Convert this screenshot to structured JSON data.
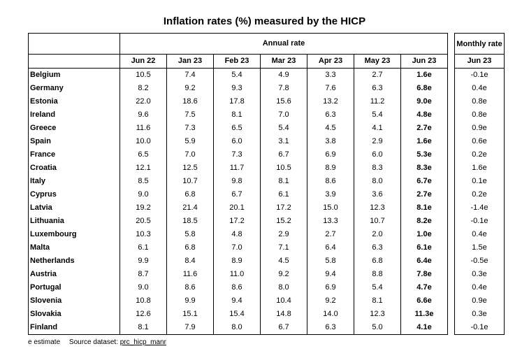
{
  "title": "Inflation rates (%) measured by the HICP",
  "group_label": "Annual rate",
  "monthly_label": "Monthly rate",
  "columns": [
    "Jun 22",
    "Jan 23",
    "Feb 23",
    "Mar 23",
    "Apr 23",
    "May 23",
    "Jun 23"
  ],
  "monthly_column": "Jun 23",
  "footer": {
    "note": "e estimate",
    "source_label": "Source dataset:",
    "source_id": "prc_hicp_manr"
  },
  "chart_data": {
    "type": "table",
    "title": "Inflation rates (%) measured by the HICP",
    "columns": [
      "Jun 22",
      "Jan 23",
      "Feb 23",
      "Mar 23",
      "Apr 23",
      "May 23",
      "Jun 23"
    ],
    "rows": [
      {
        "country": "Belgium",
        "annual": [
          "10.5",
          "7.4",
          "5.4",
          "4.9",
          "3.3",
          "2.7",
          "1.6e"
        ],
        "monthly": "-0.1e"
      },
      {
        "country": "Germany",
        "annual": [
          "8.2",
          "9.2",
          "9.3",
          "7.8",
          "7.6",
          "6.3",
          "6.8e"
        ],
        "monthly": "0.4e"
      },
      {
        "country": "Estonia",
        "annual": [
          "22.0",
          "18.6",
          "17.8",
          "15.6",
          "13.2",
          "11.2",
          "9.0e"
        ],
        "monthly": "0.8e"
      },
      {
        "country": "Ireland",
        "annual": [
          "9.6",
          "7.5",
          "8.1",
          "7.0",
          "6.3",
          "5.4",
          "4.8e"
        ],
        "monthly": "0.8e"
      },
      {
        "country": "Greece",
        "annual": [
          "11.6",
          "7.3",
          "6.5",
          "5.4",
          "4.5",
          "4.1",
          "2.7e"
        ],
        "monthly": "0.9e"
      },
      {
        "country": "Spain",
        "annual": [
          "10.0",
          "5.9",
          "6.0",
          "3.1",
          "3.8",
          "2.9",
          "1.6e"
        ],
        "monthly": "0.6e"
      },
      {
        "country": "France",
        "annual": [
          "6.5",
          "7.0",
          "7.3",
          "6.7",
          "6.9",
          "6.0",
          "5.3e"
        ],
        "monthly": "0.2e"
      },
      {
        "country": "Croatia",
        "annual": [
          "12.1",
          "12.5",
          "11.7",
          "10.5",
          "8.9",
          "8.3",
          "8.3e"
        ],
        "monthly": "1.6e"
      },
      {
        "country": "Italy",
        "annual": [
          "8.5",
          "10.7",
          "9.8",
          "8.1",
          "8.6",
          "8.0",
          "6.7e"
        ],
        "monthly": "0.1e"
      },
      {
        "country": "Cyprus",
        "annual": [
          "9.0",
          "6.8",
          "6.7",
          "6.1",
          "3.9",
          "3.6",
          "2.7e"
        ],
        "monthly": "0.2e"
      },
      {
        "country": "Latvia",
        "annual": [
          "19.2",
          "21.4",
          "20.1",
          "17.2",
          "15.0",
          "12.3",
          "8.1e"
        ],
        "monthly": "-1.4e"
      },
      {
        "country": "Lithuania",
        "annual": [
          "20.5",
          "18.5",
          "17.2",
          "15.2",
          "13.3",
          "10.7",
          "8.2e"
        ],
        "monthly": "-0.1e"
      },
      {
        "country": "Luxembourg",
        "annual": [
          "10.3",
          "5.8",
          "4.8",
          "2.9",
          "2.7",
          "2.0",
          "1.0e"
        ],
        "monthly": "0.4e"
      },
      {
        "country": "Malta",
        "annual": [
          "6.1",
          "6.8",
          "7.0",
          "7.1",
          "6.4",
          "6.3",
          "6.1e"
        ],
        "monthly": "1.5e"
      },
      {
        "country": "Netherlands",
        "annual": [
          "9.9",
          "8.4",
          "8.9",
          "4.5",
          "5.8",
          "6.8",
          "6.4e"
        ],
        "monthly": "-0.5e"
      },
      {
        "country": "Austria",
        "annual": [
          "8.7",
          "11.6",
          "11.0",
          "9.2",
          "9.4",
          "8.8",
          "7.8e"
        ],
        "monthly": "0.3e"
      },
      {
        "country": "Portugal",
        "annual": [
          "9.0",
          "8.6",
          "8.6",
          "8.0",
          "6.9",
          "5.4",
          "4.7e"
        ],
        "monthly": "0.4e"
      },
      {
        "country": "Slovenia",
        "annual": [
          "10.8",
          "9.9",
          "9.4",
          "10.4",
          "9.2",
          "8.1",
          "6.6e"
        ],
        "monthly": "0.9e"
      },
      {
        "country": "Slovakia",
        "annual": [
          "12.6",
          "15.1",
          "15.4",
          "14.8",
          "14.0",
          "12.3",
          "11.3e"
        ],
        "monthly": "0.3e"
      },
      {
        "country": "Finland",
        "annual": [
          "8.1",
          "7.9",
          "8.0",
          "6.7",
          "6.3",
          "5.0",
          "4.1e"
        ],
        "monthly": "-0.1e"
      }
    ]
  }
}
